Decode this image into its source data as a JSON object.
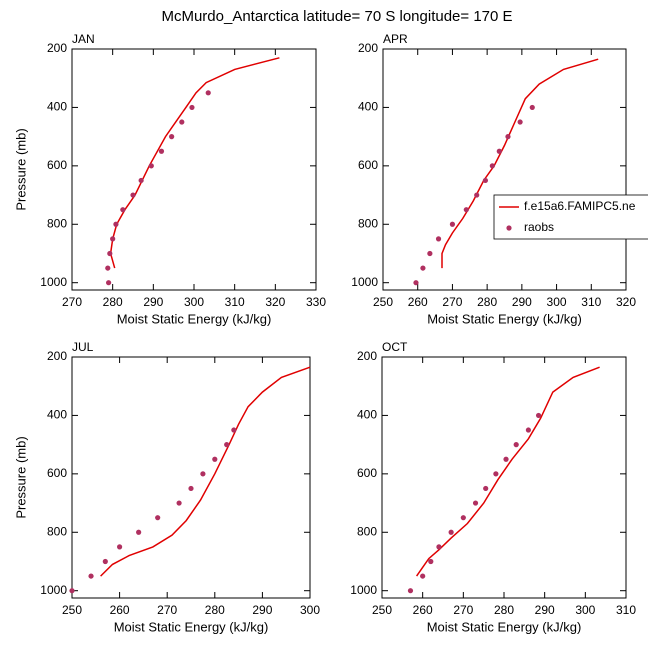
{
  "title": "McMurdo_Antarctica  latitude= 70 S longitude= 170 E",
  "chart_data": [
    {
      "type": "line",
      "title": "JAN",
      "xlabel": "Moist Static Energy (kJ/kg)",
      "ylabel": "Pressure (mb)",
      "xlim": [
        270,
        330
      ],
      "xticks": [
        270,
        280,
        290,
        300,
        310,
        320,
        330
      ],
      "ylim": [
        1025,
        200
      ],
      "yticks": [
        200,
        400,
        600,
        800,
        1000
      ],
      "series": [
        {
          "name": "f.e15a6.FAMIPC5.ne",
          "style": "line",
          "color": "#e00000",
          "x": [
            280.5,
            279.5,
            280,
            281,
            283,
            285.5,
            289,
            293,
            298,
            300.5,
            303,
            310,
            321
          ],
          "values": [
            950,
            900,
            850,
            800,
            750,
            700,
            600,
            500,
            400,
            350,
            315,
            270,
            230
          ]
        },
        {
          "name": "raobs",
          "style": "markers",
          "color": "#b03060",
          "x": [
            279,
            278.8,
            279.3,
            280,
            280.8,
            282.5,
            285,
            287,
            289.5,
            292,
            294.5,
            297,
            299.5,
            303.5
          ],
          "values": [
            1000,
            950,
            900,
            850,
            800,
            750,
            700,
            650,
            600,
            550,
            500,
            450,
            400,
            350
          ]
        }
      ]
    },
    {
      "type": "line",
      "title": "APR",
      "xlabel": "Moist Static Energy (kJ/kg)",
      "legend": "right",
      "xlim": [
        250,
        320
      ],
      "xticks": [
        250,
        260,
        270,
        280,
        290,
        300,
        310,
        320
      ],
      "ylim": [
        1025,
        200
      ],
      "yticks": [
        200,
        400,
        600,
        800,
        1000
      ],
      "series": [
        {
          "name": "f.e15a6.FAMIPC5.ne",
          "style": "line",
          "color": "#e00000",
          "x": [
            267,
            267,
            268,
            270,
            273,
            276,
            279,
            282,
            285,
            288,
            291,
            295,
            302,
            312
          ],
          "values": [
            950,
            900,
            870,
            830,
            780,
            720,
            650,
            600,
            530,
            450,
            370,
            320,
            270,
            235
          ]
        },
        {
          "name": "raobs",
          "style": "markers",
          "color": "#b03060",
          "x": [
            259.5,
            261.5,
            263.5,
            266,
            270,
            274,
            277,
            279.5,
            281.5,
            283.5,
            286,
            289.5,
            293
          ],
          "values": [
            1000,
            950,
            900,
            850,
            800,
            750,
            700,
            650,
            600,
            550,
            500,
            450,
            400
          ]
        }
      ]
    },
    {
      "type": "line",
      "title": "JUL",
      "xlabel": "Moist Static Energy (kJ/kg)",
      "ylabel": "Pressure (mb)",
      "xlim": [
        250,
        300
      ],
      "xticks": [
        250,
        260,
        270,
        280,
        290,
        300
      ],
      "ylim": [
        1025,
        200
      ],
      "yticks": [
        200,
        400,
        600,
        800,
        1000
      ],
      "series": [
        {
          "name": "f.e15a6.FAMIPC5.ne",
          "style": "line",
          "color": "#e00000",
          "x": [
            256,
            258.5,
            262,
            267,
            271,
            274,
            277,
            280,
            283,
            285,
            287,
            290,
            294,
            300
          ],
          "values": [
            950,
            910,
            880,
            850,
            810,
            760,
            690,
            600,
            500,
            430,
            370,
            320,
            270,
            235
          ]
        },
        {
          "name": "raobs",
          "style": "markers",
          "color": "#b03060",
          "x": [
            250,
            254,
            257,
            260,
            264,
            268,
            272.5,
            275,
            277.5,
            280,
            282.5,
            284
          ],
          "values": [
            1000,
            950,
            900,
            850,
            800,
            750,
            700,
            650,
            600,
            550,
            500,
            450
          ]
        }
      ]
    },
    {
      "type": "line",
      "title": "OCT",
      "xlabel": "Moist Static Energy (kJ/kg)",
      "xlim": [
        250,
        310
      ],
      "xticks": [
        250,
        260,
        270,
        280,
        290,
        300,
        310
      ],
      "ylim": [
        1025,
        200
      ],
      "yticks": [
        200,
        400,
        600,
        800,
        1000
      ],
      "series": [
        {
          "name": "f.e15a6.FAMIPC5.ne",
          "style": "line",
          "color": "#e00000",
          "x": [
            258.5,
            260,
            261.5,
            264,
            267,
            271,
            275,
            278.5,
            282,
            286,
            289,
            292,
            297,
            303.5
          ],
          "values": [
            950,
            920,
            890,
            860,
            820,
            770,
            700,
            620,
            550,
            480,
            410,
            320,
            270,
            235
          ]
        },
        {
          "name": "raobs",
          "style": "markers",
          "color": "#b03060",
          "x": [
            257,
            260,
            262,
            264,
            267,
            270,
            273,
            275.5,
            278,
            280.5,
            283,
            286,
            288.5
          ],
          "values": [
            1000,
            950,
            900,
            850,
            800,
            750,
            700,
            650,
            600,
            550,
            500,
            450,
            400
          ]
        }
      ]
    }
  ]
}
